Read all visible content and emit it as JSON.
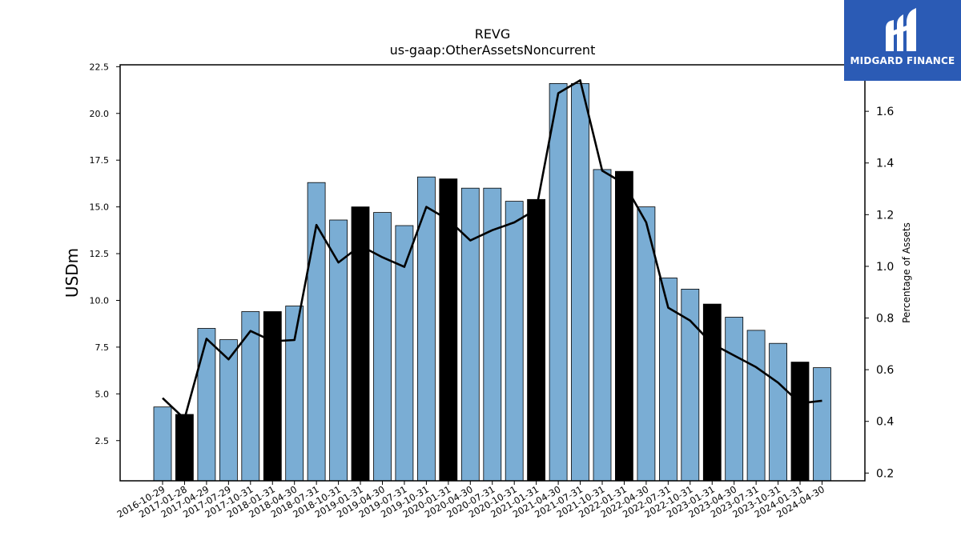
{
  "brand": {
    "name": "MIDGARD FINANCE",
    "background": "#2b5bb5"
  },
  "chart_data": {
    "type": "bar",
    "title": "REVG",
    "subtitle": "us-gaap:OtherAssetsNoncurrent",
    "ylabel": "USDm",
    "y2label": "Percentage of Assets",
    "ylim": [
      0.35,
      22.6
    ],
    "y2lim": [
      0.17,
      1.78
    ],
    "yticks": [
      "2.5",
      "5.0",
      "7.5",
      "10.0",
      "12.5",
      "15.0",
      "17.5",
      "20.0",
      "22.5"
    ],
    "y2ticks": [
      "0.2",
      "0.4",
      "0.6",
      "0.8",
      "1.0",
      "1.2",
      "1.4",
      "1.6"
    ],
    "categories": [
      "2016-10-29",
      "2017-01-28",
      "2017-04-29",
      "2017-07-29",
      "2017-10-31",
      "2018-01-31",
      "2018-04-30",
      "2018-07-31",
      "2018-10-31",
      "2019-01-31",
      "2019-04-30",
      "2019-07-31",
      "2019-10-31",
      "2020-01-31",
      "2020-04-30",
      "2020-07-31",
      "2020-10-31",
      "2021-01-31",
      "2021-04-30",
      "2021-07-31",
      "2021-10-31",
      "2022-01-31",
      "2022-04-30",
      "2022-07-31",
      "2022-10-31",
      "2023-01-31",
      "2023-04-30",
      "2023-07-31",
      "2023-10-31",
      "2024-01-31",
      "2024-04-30"
    ],
    "values": [
      4.3,
      3.9,
      8.5,
      7.9,
      9.4,
      9.4,
      9.7,
      16.3,
      14.3,
      15.0,
      14.7,
      14.0,
      16.6,
      16.5,
      16.0,
      16.0,
      15.3,
      15.4,
      21.6,
      21.6,
      17.0,
      16.9,
      15.0,
      11.2,
      10.6,
      9.8,
      9.1,
      8.4,
      7.7,
      6.7,
      6.4
    ],
    "highlighted": [
      false,
      true,
      false,
      false,
      false,
      true,
      false,
      false,
      false,
      true,
      false,
      false,
      false,
      true,
      false,
      false,
      false,
      true,
      false,
      false,
      false,
      true,
      false,
      false,
      false,
      true,
      false,
      false,
      false,
      true,
      false
    ],
    "series": [
      {
        "type": "line",
        "axis": "right",
        "values": [
          0.49,
          0.41,
          0.72,
          0.64,
          0.75,
          0.71,
          0.715,
          1.16,
          1.015,
          1.08,
          1.035,
          0.998,
          1.23,
          1.18,
          1.1,
          1.14,
          1.17,
          1.22,
          1.67,
          1.72,
          1.37,
          1.32,
          1.17,
          0.84,
          0.79,
          0.7,
          0.655,
          0.61,
          0.55,
          0.47,
          0.48
        ]
      }
    ],
    "colors": {
      "bar": "#7aadd4",
      "highlight": "#000000",
      "line": "#000000"
    },
    "grid": false
  }
}
